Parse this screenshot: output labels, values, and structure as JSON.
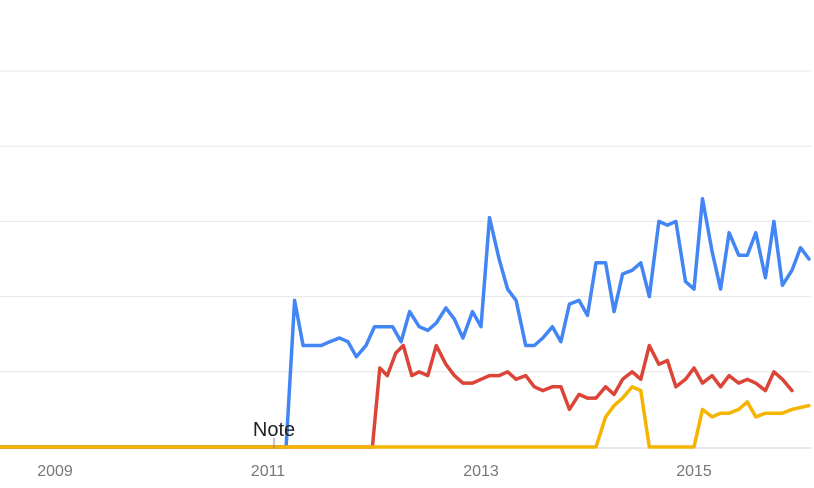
{
  "chart_data": {
    "type": "line",
    "xlim": [
      2008.0,
      2015.9
    ],
    "ylim": [
      0,
      100
    ],
    "gridlines_y": [
      0,
      20,
      40,
      60,
      80,
      100
    ],
    "grid": "horizontal",
    "x_ticks": [
      2009,
      2011,
      2013,
      2015
    ],
    "x_tick_labels": [
      "2009",
      "2011",
      "2013",
      "2015"
    ],
    "annotations": [
      {
        "text": "Note",
        "x": 2011.1
      }
    ],
    "series": [
      {
        "color": "#4285f4",
        "points": [
          [
            2008.0,
            0
          ],
          [
            2011.17,
            0
          ],
          [
            2011.25,
            39
          ],
          [
            2011.33,
            27
          ],
          [
            2011.42,
            27
          ],
          [
            2011.5,
            27
          ],
          [
            2011.58,
            28
          ],
          [
            2011.67,
            29
          ],
          [
            2011.75,
            28
          ],
          [
            2011.83,
            24
          ],
          [
            2011.92,
            27
          ],
          [
            2012.0,
            32
          ],
          [
            2012.08,
            32
          ],
          [
            2012.17,
            32
          ],
          [
            2012.25,
            28
          ],
          [
            2012.33,
            36
          ],
          [
            2012.42,
            32
          ],
          [
            2012.5,
            31
          ],
          [
            2012.58,
            33
          ],
          [
            2012.67,
            37
          ],
          [
            2012.75,
            34
          ],
          [
            2012.83,
            29
          ],
          [
            2012.92,
            36
          ],
          [
            2013.0,
            32
          ],
          [
            2013.08,
            61
          ],
          [
            2013.17,
            50
          ],
          [
            2013.25,
            42
          ],
          [
            2013.33,
            39
          ],
          [
            2013.42,
            27
          ],
          [
            2013.5,
            27
          ],
          [
            2013.58,
            29
          ],
          [
            2013.67,
            32
          ],
          [
            2013.75,
            28
          ],
          [
            2013.83,
            38
          ],
          [
            2013.92,
            39
          ],
          [
            2014.0,
            35
          ],
          [
            2014.08,
            49
          ],
          [
            2014.17,
            49
          ],
          [
            2014.25,
            36
          ],
          [
            2014.33,
            46
          ],
          [
            2014.42,
            47
          ],
          [
            2014.5,
            49
          ],
          [
            2014.58,
            40
          ],
          [
            2014.67,
            60
          ],
          [
            2014.75,
            59
          ],
          [
            2014.83,
            60
          ],
          [
            2014.92,
            44
          ],
          [
            2015.0,
            42
          ],
          [
            2015.08,
            66
          ],
          [
            2015.17,
            52
          ],
          [
            2015.25,
            42
          ],
          [
            2015.33,
            57
          ],
          [
            2015.42,
            51
          ],
          [
            2015.5,
            51
          ],
          [
            2015.58,
            57
          ],
          [
            2015.67,
            45
          ],
          [
            2015.75,
            60
          ],
          [
            2015.83,
            43
          ],
          [
            2015.92,
            47
          ],
          [
            2016.0,
            53
          ],
          [
            2016.08,
            50
          ]
        ]
      },
      {
        "color": "#db4437",
        "points": [
          [
            2008.0,
            0
          ],
          [
            2011.98,
            0
          ],
          [
            2012.05,
            21
          ],
          [
            2012.12,
            19
          ],
          [
            2012.2,
            25
          ],
          [
            2012.27,
            27
          ],
          [
            2012.35,
            19
          ],
          [
            2012.42,
            20
          ],
          [
            2012.5,
            19
          ],
          [
            2012.58,
            27
          ],
          [
            2012.67,
            22
          ],
          [
            2012.75,
            19
          ],
          [
            2012.83,
            17
          ],
          [
            2012.92,
            17
          ],
          [
            2013.0,
            18
          ],
          [
            2013.08,
            19
          ],
          [
            2013.17,
            19
          ],
          [
            2013.25,
            20
          ],
          [
            2013.33,
            18
          ],
          [
            2013.42,
            19
          ],
          [
            2013.5,
            16
          ],
          [
            2013.58,
            15
          ],
          [
            2013.67,
            16
          ],
          [
            2013.75,
            16
          ],
          [
            2013.83,
            10
          ],
          [
            2013.92,
            14
          ],
          [
            2014.0,
            13
          ],
          [
            2014.08,
            13
          ],
          [
            2014.17,
            16
          ],
          [
            2014.25,
            14
          ],
          [
            2014.33,
            18
          ],
          [
            2014.42,
            20
          ],
          [
            2014.5,
            18
          ],
          [
            2014.58,
            27
          ],
          [
            2014.67,
            22
          ],
          [
            2014.75,
            23
          ],
          [
            2014.83,
            16
          ],
          [
            2014.92,
            18
          ],
          [
            2015.0,
            21
          ],
          [
            2015.08,
            17
          ],
          [
            2015.17,
            19
          ],
          [
            2015.25,
            16
          ],
          [
            2015.33,
            19
          ],
          [
            2015.42,
            17
          ],
          [
            2015.5,
            18
          ],
          [
            2015.58,
            17
          ],
          [
            2015.67,
            15
          ],
          [
            2015.75,
            20
          ],
          [
            2015.83,
            18
          ],
          [
            2015.92,
            15
          ]
        ]
      },
      {
        "color": "#f4b400",
        "points": [
          [
            2008.0,
            0
          ],
          [
            2014.08,
            0
          ],
          [
            2014.17,
            8
          ],
          [
            2014.25,
            11
          ],
          [
            2014.33,
            13
          ],
          [
            2014.42,
            16
          ],
          [
            2014.5,
            15
          ],
          [
            2014.58,
            0
          ],
          [
            2015.0,
            0
          ],
          [
            2015.08,
            10
          ],
          [
            2015.17,
            8
          ],
          [
            2015.25,
            9
          ],
          [
            2015.33,
            9
          ],
          [
            2015.42,
            10
          ],
          [
            2015.5,
            12
          ],
          [
            2015.58,
            8
          ],
          [
            2015.67,
            9
          ],
          [
            2015.75,
            9
          ],
          [
            2015.83,
            9
          ],
          [
            2015.92,
            10
          ],
          [
            2016.08,
            11
          ]
        ]
      }
    ]
  }
}
